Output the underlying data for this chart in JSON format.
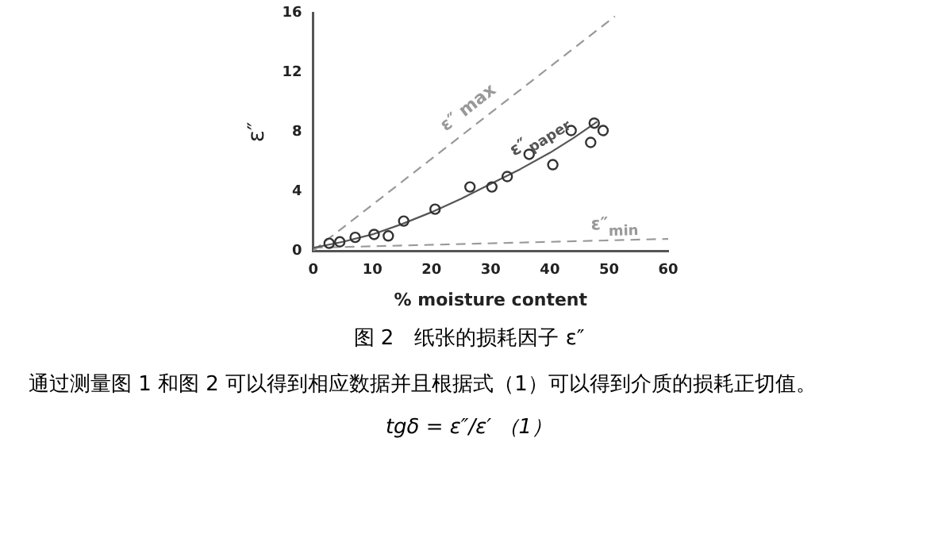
{
  "chart_data": {
    "type": "scatter",
    "xlabel": "% moisture content",
    "ylabel": "ε″",
    "xlim": [
      0,
      60
    ],
    "xticks": [
      0,
      10,
      20,
      30,
      40,
      50,
      60
    ],
    "ylim": [
      0,
      16
    ],
    "yticks": [
      0,
      4,
      8,
      12,
      16
    ],
    "grid": false,
    "legend": false,
    "marker": "circle",
    "series": [
      {
        "color": "#333333",
        "x": [
          2.7,
          4.5,
          7.1,
          10.3,
          12.7,
          15.3,
          20.6,
          26.5,
          30.2,
          32.8,
          36.5,
          40.5,
          43.6,
          46.9,
          47.5,
          49
        ],
        "values": [
          0.5,
          0.6,
          0.9,
          1.1,
          1.0,
          2.0,
          2.8,
          4.3,
          4.3,
          5.0,
          6.5,
          5.8,
          8.1,
          7.3,
          8.6,
          8.1
        ]
      },
      {
        "type": "line",
        "name": "ε″$_{paper}$",
        "marker": "none",
        "color": "#555555",
        "line_style": "solid",
        "x": [
          0,
          5,
          10,
          15,
          20,
          25,
          30,
          35,
          40,
          44,
          48
        ],
        "values": [
          0.2,
          0.6,
          1.1,
          1.8,
          2.6,
          3.5,
          4.5,
          5.5,
          6.6,
          7.6,
          8.7
        ]
      },
      {
        "type": "line",
        "name": "ε″ max",
        "marker": "none",
        "color": "#999999",
        "line_style": "dashed",
        "x": [
          0,
          51
        ],
        "values": [
          0,
          15.8
        ]
      },
      {
        "type": "line",
        "name": "ε″$_{min}$",
        "marker": "none",
        "color": "#999999",
        "line_style": "dashed",
        "x": [
          0,
          60
        ],
        "values": [
          0.2,
          0.8
        ]
      }
    ],
    "annotations": [
      "图 2　纸张的损耗因子 ε″",
      "通过测量图 1 和图 2 可以得到相应数据并且根据式（1）可以得到介质的损耗正切值。",
      "tgδ = ε″/ε′ （1）"
    ]
  }
}
